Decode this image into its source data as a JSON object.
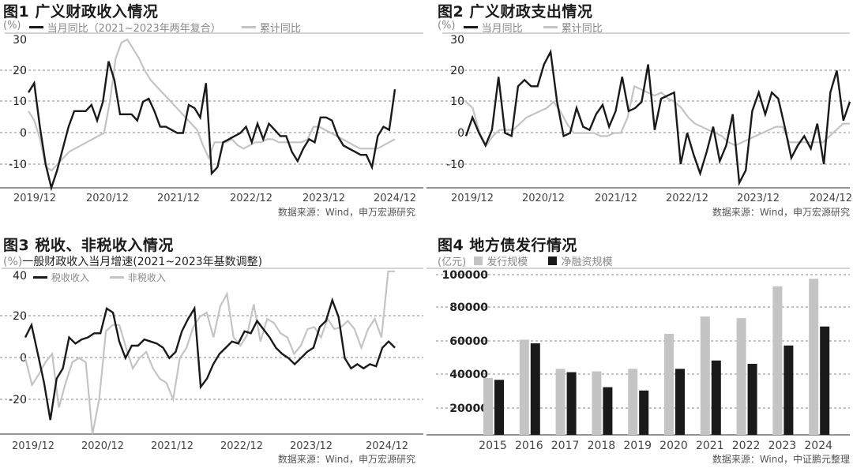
{
  "chart_data": [
    {
      "id": "fig1",
      "type": "line",
      "title": "图1 广义财政收入情况",
      "unit": "(%)",
      "ylabel": "%",
      "yticks": [
        30,
        20,
        10,
        0,
        -10
      ],
      "ylim": [
        -18,
        32
      ],
      "xticks": [
        "2019/12",
        "2020/12",
        "2021/12",
        "2022/12",
        "2023/12",
        "2024/12"
      ],
      "grid": "dashed-horizontal",
      "legend_position": "top",
      "source": "数据来源：Wind，申万宏源研究",
      "series": [
        {
          "name": "当月同比（2021~2023年两年复合）",
          "color": "#1a1a1a",
          "values": [
            13,
            16,
            2,
            -10,
            -18,
            -12,
            -5,
            2,
            7,
            7,
            7,
            9,
            4,
            10,
            23,
            17,
            6,
            6,
            6,
            4,
            10,
            11,
            7,
            2,
            2,
            1,
            0,
            0,
            9,
            8,
            5,
            16,
            -13,
            -11,
            -3,
            -2,
            -1,
            0,
            2,
            -3,
            3,
            -2,
            3,
            1,
            -1,
            -1,
            -6,
            -9,
            -5,
            -2,
            -3,
            5,
            5,
            4,
            -1,
            -4,
            -5,
            -6,
            -7,
            -7,
            -11,
            -1,
            2,
            1,
            14
          ]
        },
        {
          "name": "累计同比",
          "color": "#c4c4c4",
          "values": [
            7,
            4,
            -2,
            -11,
            -12,
            -10,
            -8,
            -6,
            -5,
            -4,
            -3,
            -2,
            -1,
            0,
            10,
            24,
            29,
            30,
            27,
            24,
            20,
            17,
            15,
            13,
            11,
            9,
            7,
            5,
            3,
            1,
            -4,
            -8,
            -3,
            -3,
            -3,
            -2,
            -4,
            -5,
            -4,
            -3,
            -3,
            -2,
            -2,
            -3,
            -3,
            -3,
            -3,
            -3,
            -2,
            2,
            2,
            1,
            0,
            -1,
            -2,
            -3,
            -4,
            -5,
            -5,
            -5,
            -5,
            -4,
            -3,
            -2
          ]
        }
      ]
    },
    {
      "id": "fig2",
      "type": "line",
      "title": "图2 广义财政支出情况",
      "unit": "(%)",
      "ylabel": "%",
      "yticks": [
        30,
        20,
        10,
        0,
        -10
      ],
      "ylim": [
        -18,
        32
      ],
      "xticks": [
        "2019/12",
        "2020/12",
        "2021/12",
        "2022/12",
        "2023/12",
        "2024/12"
      ],
      "grid": "dashed-horizontal",
      "legend_position": "top",
      "source": "数据来源：Wind，申万宏源研究",
      "series": [
        {
          "name": "当月同比",
          "color": "#1a1a1a",
          "values": [
            -1,
            5,
            0,
            -4,
            1,
            18,
            0,
            -1,
            15,
            17,
            15,
            15,
            22,
            26,
            10,
            -1,
            0,
            8,
            2,
            1,
            6,
            9,
            2,
            7,
            18,
            7,
            8,
            10,
            22,
            1,
            11,
            12,
            13,
            -10,
            0,
            -7,
            -13,
            -6,
            2,
            -9,
            -4,
            6,
            -16,
            -12,
            7,
            13,
            6,
            13,
            11,
            2,
            -8,
            -4,
            -1,
            -5,
            3,
            -10,
            13,
            20,
            4,
            10
          ]
        },
        {
          "name": "累计同比",
          "color": "#c4c4c4",
          "values": [
            10,
            8,
            0,
            -4,
            -1,
            1,
            1,
            1,
            3,
            5,
            6,
            7,
            8,
            10,
            7,
            3,
            0,
            0,
            0,
            0,
            -1,
            -1,
            0,
            0,
            5,
            15,
            14,
            13,
            12,
            13,
            11,
            10,
            8,
            5,
            3,
            2,
            1,
            0,
            -1,
            -3,
            -4,
            -3,
            -2,
            -1,
            0,
            1,
            2,
            2,
            -3,
            -3,
            -3,
            -3,
            -3,
            -3,
            -1,
            1,
            3,
            3
          ]
        }
      ]
    },
    {
      "id": "fig3",
      "type": "line",
      "title": "图3 税收、非税收入情况",
      "unit": "(%)",
      "subtitle": "一般财政收入当月增速(2021~2023年基数调整)",
      "ylabel": "%",
      "yticks": [
        40,
        20,
        0,
        -20
      ],
      "ylim": [
        -37,
        42
      ],
      "xticks": [
        "2019/12",
        "2020/12",
        "2021/12",
        "2022/12",
        "2023/12",
        "2024/12"
      ],
      "grid": "dashed-horizontal",
      "legend_position": "top",
      "source": "数据来源：Wind，申万宏源研究",
      "series": [
        {
          "name": "税收收入",
          "color": "#1a1a1a",
          "values": [
            10,
            16,
            2,
            -12,
            -30,
            -10,
            -5,
            10,
            7,
            9,
            10,
            12,
            12,
            24,
            22,
            8,
            0,
            6,
            6,
            9,
            8,
            7,
            5,
            0,
            3,
            13,
            19,
            24,
            -14,
            -10,
            -3,
            2,
            5,
            8,
            7,
            13,
            12,
            18,
            14,
            10,
            5,
            2,
            0,
            -3,
            0,
            3,
            5,
            15,
            18,
            28,
            20,
            0,
            -5,
            -3,
            -5,
            -3,
            -4,
            5,
            8,
            5
          ]
        },
        {
          "name": "非税收入",
          "color": "#c4c4c4",
          "values": [
            0,
            -13,
            -8,
            -2,
            2,
            -24,
            -12,
            -2,
            0,
            -2,
            -38,
            -20,
            13,
            16,
            16,
            5,
            -5,
            0,
            3,
            -5,
            -10,
            -12,
            -20,
            0,
            5,
            15,
            20,
            22,
            10,
            25,
            31,
            10,
            6,
            11,
            26,
            8,
            19,
            17,
            12,
            10,
            2,
            6,
            14,
            15,
            10,
            19,
            14,
            15,
            18,
            14,
            5,
            14,
            19,
            10,
            42,
            42
          ]
        }
      ]
    },
    {
      "id": "fig4",
      "type": "bar",
      "title": "图4 地方债发行情况",
      "unit": "(亿元)",
      "ylabel": "亿元",
      "yticks": [
        100000,
        80000,
        60000,
        40000,
        20000
      ],
      "ylim": [
        0,
        105000
      ],
      "categories": [
        "2015",
        "2016",
        "2017",
        "2018",
        "2019",
        "2020",
        "2021",
        "2022",
        "2023",
        "2024"
      ],
      "grid": "dashed-horizontal",
      "legend_position": "top",
      "source": "数据来源：Wind，中证鹏元整理",
      "series": [
        {
          "name": "发行规模",
          "color": "#c4c4c4",
          "values": [
            38000,
            61000,
            43500,
            42000,
            43500,
            64500,
            74900,
            73900,
            93000,
            97500
          ]
        },
        {
          "name": "净融资规模",
          "color": "#1a1a1a",
          "values": [
            36900,
            58800,
            41500,
            32500,
            30500,
            43500,
            48500,
            46500,
            57500,
            68900
          ]
        }
      ]
    }
  ],
  "panels": {
    "fig1": {
      "title": "图1 广义财政收入情况",
      "unit": "(%)",
      "legend": [
        "当月同比（2021~2023年两年复合）",
        "累计同比"
      ],
      "source": "数据来源：Wind，申万宏源研究"
    },
    "fig2": {
      "title": "图2 广义财政支出情况",
      "unit": "(%)",
      "legend": [
        "当月同比",
        "累计同比"
      ],
      "source": "数据来源：Wind，申万宏源研究"
    },
    "fig3": {
      "title": "图3 税收、非税收入情况",
      "unit": "(%)",
      "subtitle": "一般财政收入当月增速(2021~2023年基数调整)",
      "legend": [
        "税收收入",
        "非税收入"
      ],
      "source": "数据来源：Wind，申万宏源研究"
    },
    "fig4": {
      "title": "图4 地方债发行情况",
      "unit": "(亿元)",
      "legend": [
        "发行规模",
        "净融资规模"
      ],
      "source": "数据来源：Wind，中证鹏元整理"
    }
  }
}
